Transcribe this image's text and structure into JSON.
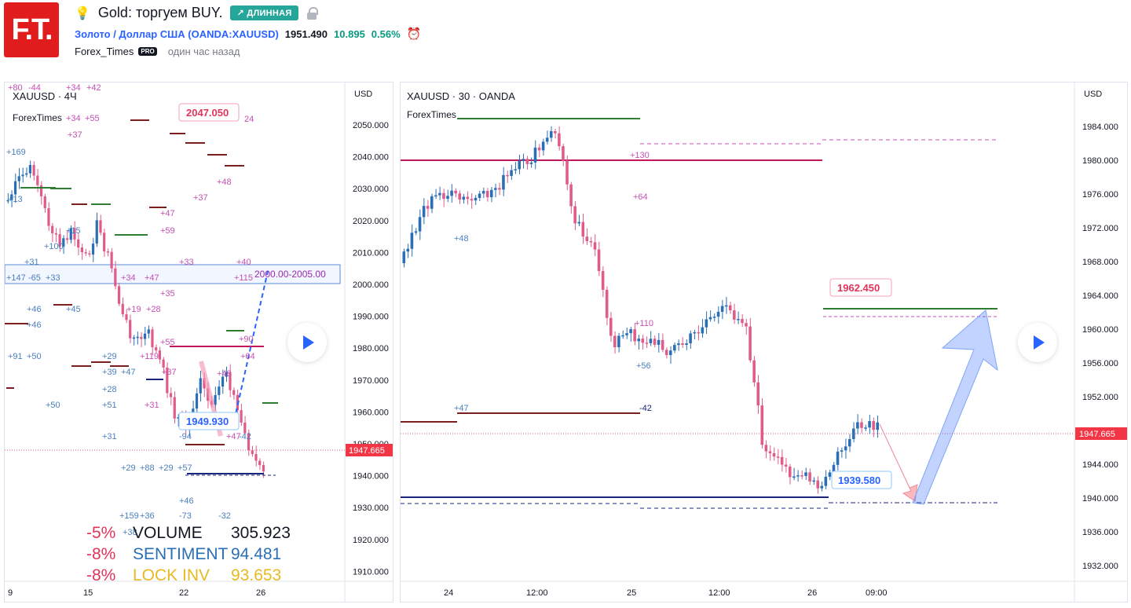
{
  "header": {
    "logo_text": "F.T.",
    "bulb_icon": "lightbulb-icon",
    "title": "Gold: торгуем BUY.",
    "direction_badge": "↗ ДЛИННАЯ",
    "symbol_name": "Золото / Доллар США",
    "symbol_code": "(OANDA:XAUUSD)",
    "price": "1951.490",
    "change": "10.895",
    "change_pct": "0.56%",
    "author": "Forex_Times",
    "pro_badge": "PRO",
    "time_ago": "один час назад",
    "colors": {
      "logo": "#e01c1c",
      "badge": "#26a69a",
      "up": "#089981",
      "down": "#f23645",
      "link": "#2962ff"
    }
  },
  "chart_left": {
    "legend_symbol": "XAUUSD · 4Ч",
    "legend_author": "ForexTimes",
    "axis_unit": "USD",
    "y_ticks": [
      "2050.000",
      "2040.000",
      "2030.000",
      "2020.000",
      "2010.000",
      "2000.000",
      "1990.000",
      "1980.000",
      "1970.000",
      "1960.000",
      "1950.000",
      "1940.000",
      "1930.000",
      "1920.000",
      "1910.000"
    ],
    "x_ticks": [
      "9",
      "15",
      "22",
      "26"
    ],
    "current_price": "1947.665",
    "callout_high": "2047.050",
    "callout_low": "1949.930",
    "zone_label": "2000.00-2005.00",
    "stats": [
      {
        "pct": "-8%",
        "name": "VOLUME",
        "value": "305.923"
      },
      {
        "pct": "-8%",
        "name": "SENTIMENT",
        "value": "94.481"
      },
      {
        "pct": "-8%",
        "name": "LOCK INV",
        "value": "93.653"
      }
    ],
    "stat_first_pct": "-5%",
    "annotations_magenta": [
      "+80",
      "-44",
      "+34",
      "+42",
      "+34",
      "+55",
      "+37",
      "24",
      "+48",
      "+37",
      "+47",
      "+59",
      "+33",
      "+40",
      "+115",
      "+34",
      "+47",
      "+35",
      "+19",
      "+28",
      "+55",
      "+119",
      "+37",
      "+31",
      "+48",
      "+64",
      "+90",
      "+47"
    ],
    "annotations_blue": [
      "+169",
      "+13",
      "+15",
      "+100",
      "+31",
      "+147",
      "-65",
      "+33",
      "+46",
      "+45",
      "+46",
      "+91",
      "+50",
      "+29",
      "+39",
      "+47",
      "+28",
      "+51",
      "+50",
      "+31",
      "+29",
      "+88",
      "+29",
      "+57",
      "-94",
      "-42",
      "+46",
      "+159",
      "+36",
      "-73",
      "-32",
      "+38"
    ]
  },
  "chart_right": {
    "legend_symbol": "XAUUSD · 30 · OANDA",
    "legend_author": "ForexTimes",
    "axis_unit": "USD",
    "y_ticks": [
      "1984.000",
      "1980.000",
      "1976.000",
      "1972.000",
      "1968.000",
      "1964.000",
      "1960.000",
      "1956.000",
      "1952.000",
      "1948.000",
      "1944.000",
      "1940.000",
      "1936.000",
      "1932.000"
    ],
    "x_ticks": [
      "24",
      "12:00",
      "25",
      "12:00",
      "26",
      "09:00"
    ],
    "current_price": "1947.665",
    "callout_target": "1962.450",
    "callout_low": "1939.580",
    "annotations": [
      "+130",
      "+64",
      "+48",
      "+110",
      "+56",
      "+47",
      "-42"
    ]
  }
}
